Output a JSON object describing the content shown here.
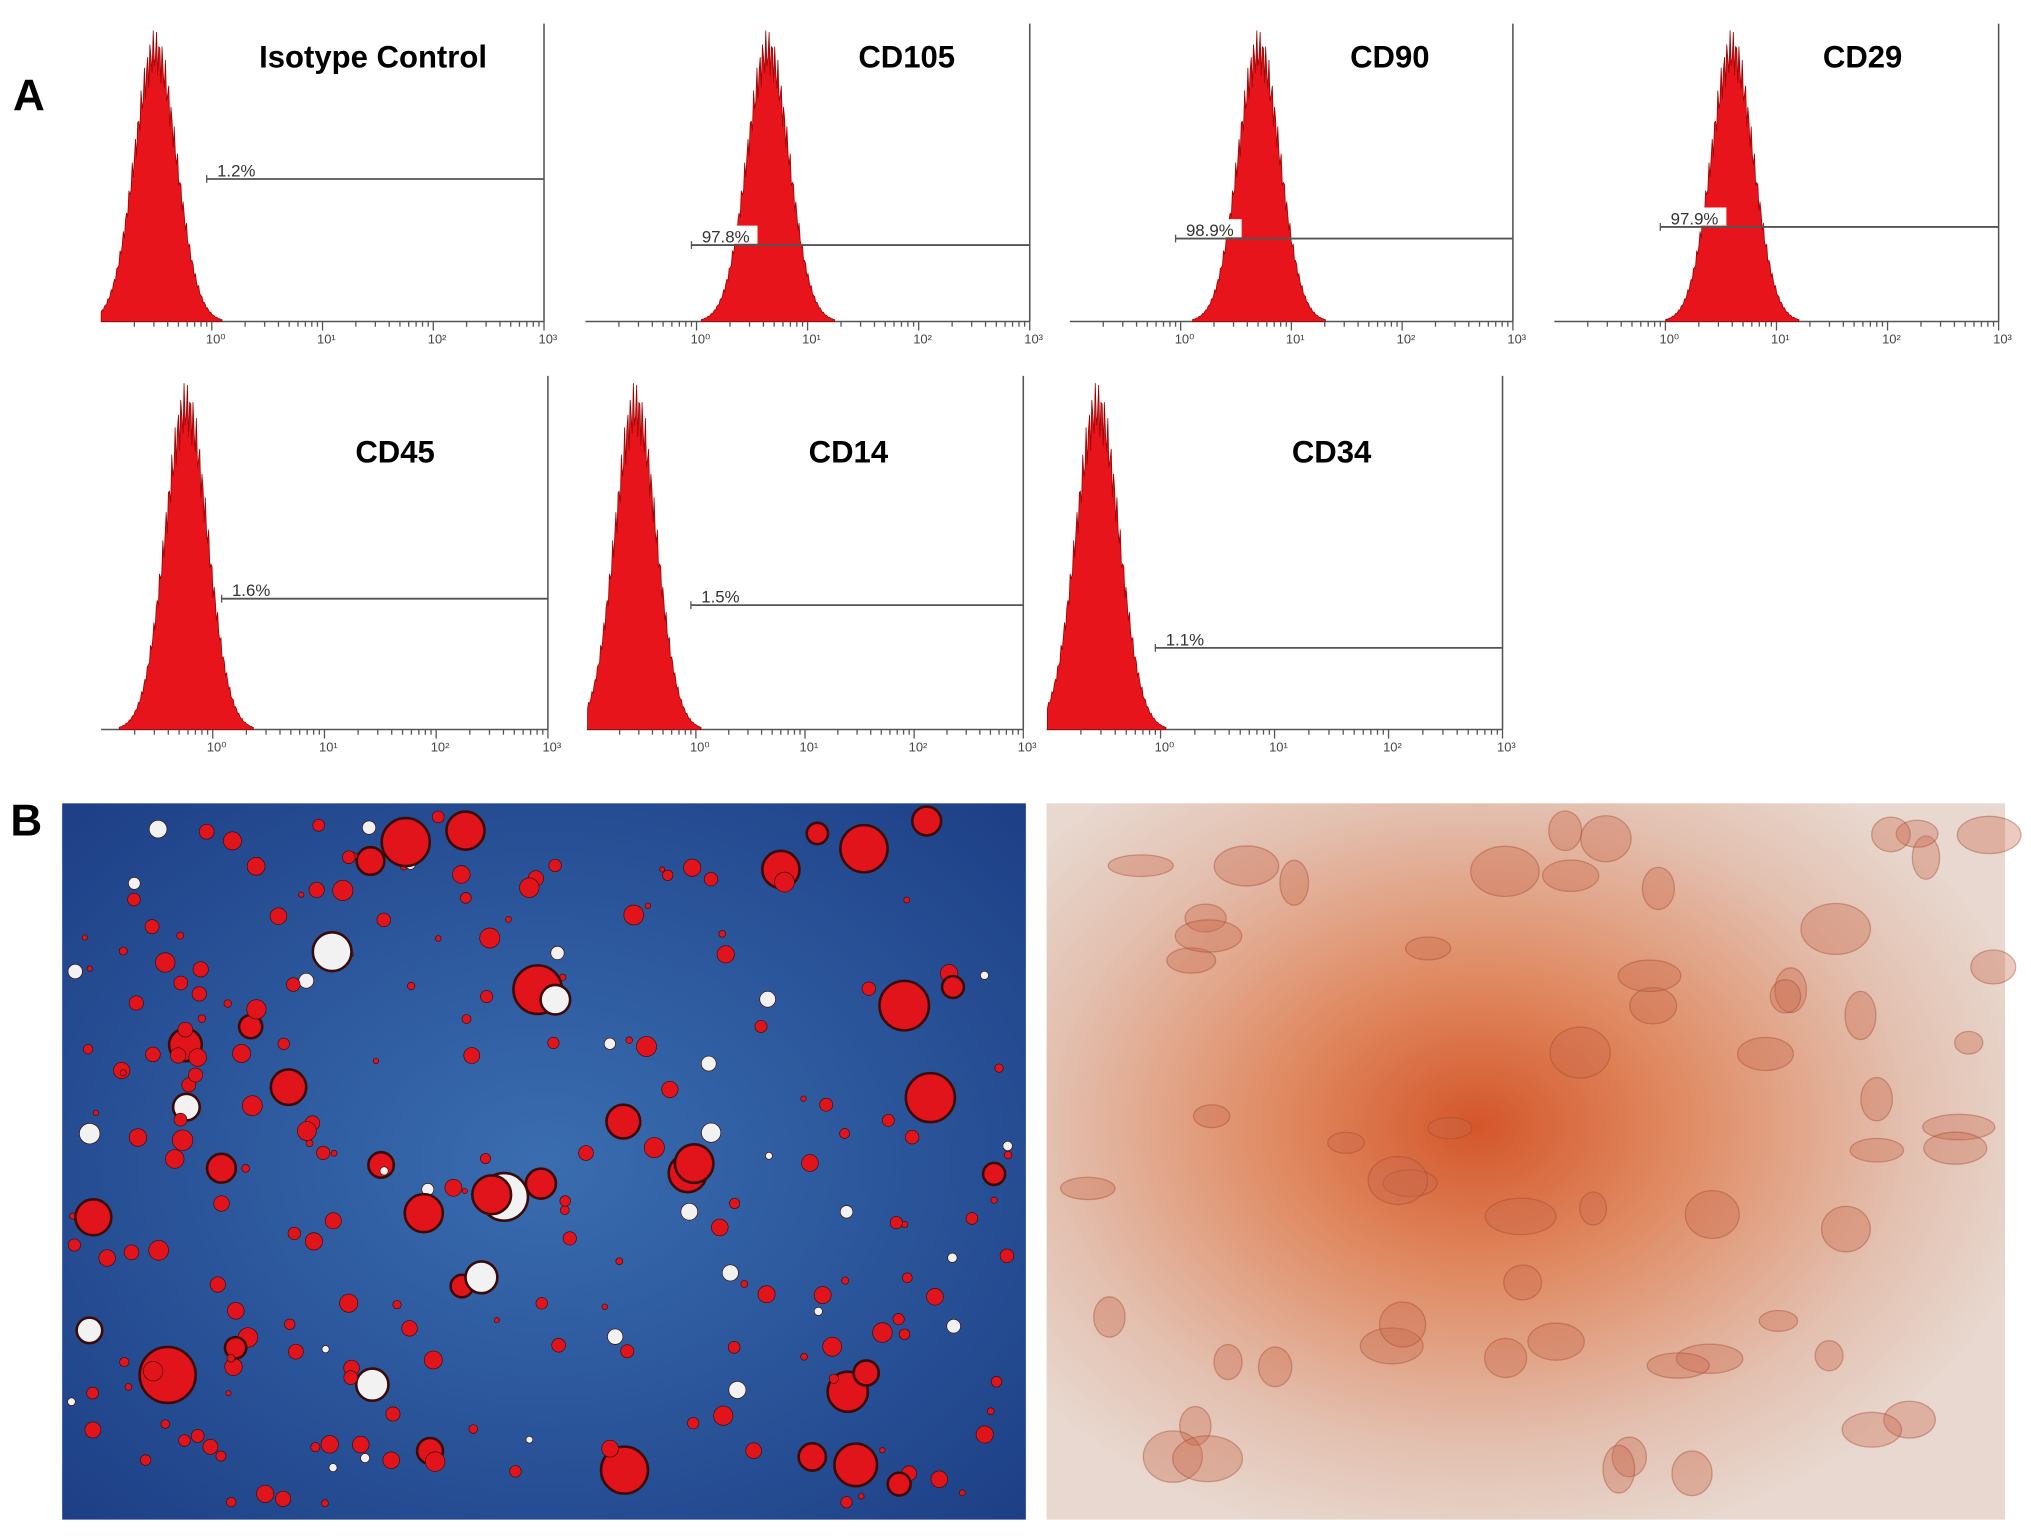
{
  "panel_labels": [
    "A",
    "B"
  ],
  "chart_data": [
    {
      "type": "histogram",
      "title": "Isotype Control",
      "log_x": true,
      "xlim": [
        0.1,
        1000
      ],
      "xticks": [
        {
          "value": 1,
          "label": "10⁰"
        },
        {
          "value": 10,
          "label": "10¹"
        },
        {
          "value": 100,
          "label": "10²"
        },
        {
          "value": 1000,
          "label": "10³"
        }
      ],
      "color": "#e8141b",
      "mode": 0.31,
      "gate": {
        "value": 1.2,
        "label": "1.2%",
        "xrange": [
          0.9,
          1000
        ]
      }
    },
    {
      "type": "histogram",
      "title": "CD105",
      "log_x": true,
      "xlim": [
        0.1,
        1000
      ],
      "xticks": [
        {
          "value": 1,
          "label": "10⁰"
        },
        {
          "value": 10,
          "label": "10¹"
        },
        {
          "value": 100,
          "label": "10²"
        },
        {
          "value": 1000,
          "label": "10³"
        }
      ],
      "color": "#e8141b",
      "mode": 4.4,
      "gate": {
        "value": 97.8,
        "label": "97.8%",
        "xrange": [
          0.9,
          1000
        ]
      }
    },
    {
      "type": "histogram",
      "title": "CD90",
      "log_x": true,
      "xlim": [
        0.1,
        1000
      ],
      "xticks": [
        {
          "value": 1,
          "label": "10⁰"
        },
        {
          "value": 10,
          "label": "10¹"
        },
        {
          "value": 100,
          "label": "10²"
        },
        {
          "value": 1000,
          "label": "10³"
        }
      ],
      "color": "#e8141b",
      "mode": 5.1,
      "gate": {
        "value": 98.9,
        "label": "98.9%",
        "xrange": [
          0.9,
          1000
        ]
      }
    },
    {
      "type": "histogram",
      "title": "CD29",
      "log_x": true,
      "xlim": [
        0.1,
        1000
      ],
      "xticks": [
        {
          "value": 1,
          "label": "10⁰"
        },
        {
          "value": 10,
          "label": "10¹"
        },
        {
          "value": 100,
          "label": "10²"
        },
        {
          "value": 1000,
          "label": "10³"
        }
      ],
      "color": "#e8141b",
      "mode": 4.0,
      "gate": {
        "value": 97.9,
        "label": "97.9%",
        "xrange": [
          0.9,
          1000
        ]
      }
    },
    {
      "type": "histogram",
      "title": "CD45",
      "log_x": true,
      "xlim": [
        0.1,
        1000
      ],
      "xticks": [
        {
          "value": 1,
          "label": "10⁰"
        },
        {
          "value": 10,
          "label": "10¹"
        },
        {
          "value": 100,
          "label": "10²"
        },
        {
          "value": 1000,
          "label": "10³"
        }
      ],
      "color": "#e8141b",
      "mode": 0.58,
      "gate": {
        "value": 1.6,
        "label": "1.6%",
        "xrange": [
          1.2,
          1000
        ]
      }
    },
    {
      "type": "histogram",
      "title": "CD14",
      "log_x": true,
      "xlim": [
        0.1,
        1000
      ],
      "xticks": [
        {
          "value": 1,
          "label": "10⁰"
        },
        {
          "value": 10,
          "label": "10¹"
        },
        {
          "value": 100,
          "label": "10²"
        },
        {
          "value": 1000,
          "label": "10³"
        }
      ],
      "color": "#e8141b",
      "mode": 0.28,
      "gate": {
        "value": 1.5,
        "label": "1.5%",
        "xrange": [
          0.9,
          1000
        ]
      }
    },
    {
      "type": "histogram",
      "title": "CD34",
      "log_x": true,
      "xlim": [
        0.1,
        1000
      ],
      "xticks": [
        {
          "value": 1,
          "label": "10⁰"
        },
        {
          "value": 10,
          "label": "10¹"
        },
        {
          "value": 100,
          "label": "10²"
        },
        {
          "value": 1000,
          "label": "10³"
        }
      ],
      "color": "#e8141b",
      "mode": 0.28,
      "gate": {
        "value": 1.1,
        "label": "1.1%",
        "xrange": [
          0.9,
          1000
        ]
      }
    }
  ]
}
